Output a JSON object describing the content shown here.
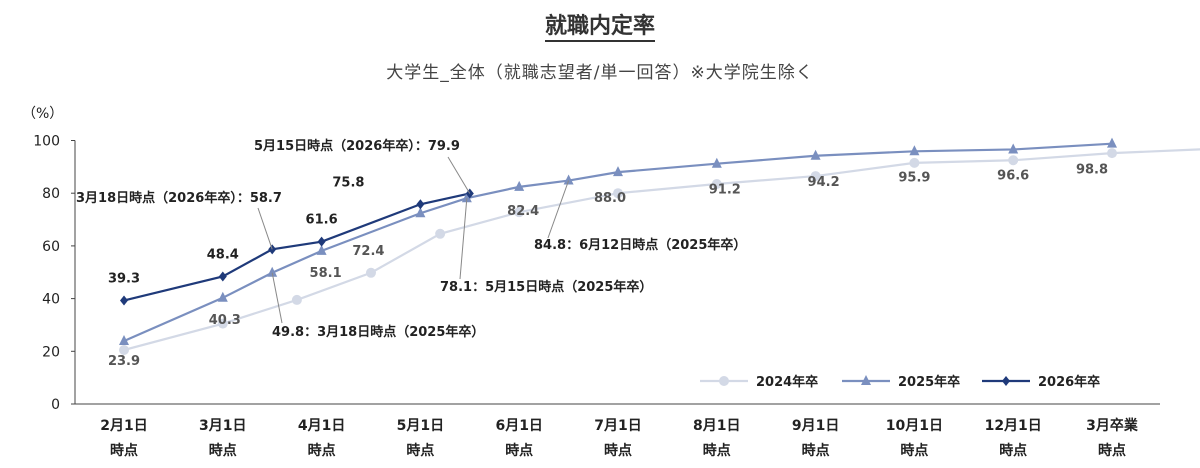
{
  "title": "就職内定率",
  "subtitle": "大学生_全体（就職志望者/単一回答）※大学院生除く",
  "chart_data": {
    "type": "line",
    "ylabel": "（%）",
    "ylim": [
      0,
      100
    ],
    "yticks": [
      0,
      20,
      40,
      60,
      80,
      100
    ],
    "categories": [
      [
        "2月1日",
        "時点"
      ],
      [
        "3月1日",
        "時点"
      ],
      [
        "4月1日",
        "時点"
      ],
      [
        "5月1日",
        "時点"
      ],
      [
        "6月1日",
        "時点"
      ],
      [
        "7月1日",
        "時点"
      ],
      [
        "8月1日",
        "時点"
      ],
      [
        "9月1日",
        "時点"
      ],
      [
        "10月1日",
        "時点"
      ],
      [
        "12月1日",
        "時点"
      ],
      [
        "3月卒業",
        "時点"
      ]
    ],
    "legend_position": "bottom-right",
    "series": [
      {
        "name": "2024年卒",
        "color": "#d3d9e6",
        "marker": "circle",
        "points": [
          [
            0,
            20.5
          ],
          [
            1,
            30.5
          ],
          [
            1.75,
            39.5
          ],
          [
            2.5,
            49.8
          ],
          [
            3.2,
            64.6
          ],
          [
            4,
            72.8
          ],
          [
            5,
            80
          ],
          [
            6,
            83.5
          ],
          [
            7,
            86.5
          ],
          [
            8,
            91.5
          ],
          [
            9,
            92.5
          ],
          [
            10,
            95.2
          ],
          [
            11,
            96.8
          ]
        ]
      },
      {
        "name": "2025年卒",
        "color": "#7a8fbf",
        "marker": "triangle",
        "points": [
          [
            0,
            23.9
          ],
          [
            1,
            40.3
          ],
          [
            1.5,
            49.8
          ],
          [
            2,
            58.1
          ],
          [
            3,
            72.4
          ],
          [
            3.47,
            78.1
          ],
          [
            4,
            82.4
          ],
          [
            4.5,
            84.8
          ],
          [
            5,
            88
          ],
          [
            6,
            91.2
          ],
          [
            7,
            94.2
          ],
          [
            8,
            95.9
          ],
          [
            9,
            96.6
          ],
          [
            10,
            98.8
          ]
        ]
      },
      {
        "name": "2026年卒",
        "color": "#1f3a7a",
        "marker": "diamond",
        "points": [
          [
            0,
            39.3
          ],
          [
            1,
            48.4
          ],
          [
            1.5,
            58.7
          ],
          [
            2,
            61.6
          ],
          [
            3,
            75.8
          ],
          [
            3.5,
            79.9
          ]
        ]
      }
    ],
    "value_labels": [
      {
        "text": "39.3",
        "series": 2,
        "point": 0
      },
      {
        "text": "48.4",
        "series": 2,
        "point": 1
      },
      {
        "text": "61.6",
        "series": 2,
        "point": 3
      },
      {
        "text": "75.8",
        "series": 2,
        "point": 4
      },
      {
        "text": "23.9",
        "series": 1,
        "point": 0
      },
      {
        "text": "40.3",
        "series": 1,
        "point": 1
      },
      {
        "text": "58.1",
        "series": 1,
        "point": 3
      },
      {
        "text": "72.4",
        "series": 1,
        "point": 4
      },
      {
        "text": "82.4",
        "series": 1,
        "point": 6
      },
      {
        "text": "88.0",
        "series": 1,
        "point": 8
      },
      {
        "text": "91.2",
        "series": 1,
        "point": 9
      },
      {
        "text": "94.2",
        "series": 1,
        "point": 10
      },
      {
        "text": "95.9",
        "series": 1,
        "point": 11
      },
      {
        "text": "96.6",
        "series": 1,
        "point": 12
      },
      {
        "text": "98.8",
        "series": 1,
        "point": 13
      }
    ],
    "annotations": [
      {
        "text": "5月15日時点（2026年卒）：79.9",
        "series": 2,
        "point": 5
      },
      {
        "text": "3月18日時点（2026年卒）：58.7",
        "series": 2,
        "point": 2
      },
      {
        "text": "84.8：6月12日時点（2025年卒）",
        "series": 1,
        "point": 7
      },
      {
        "text": "78.1：5月15日時点（2025年卒）",
        "series": 1,
        "point": 5
      },
      {
        "text": "49.8：3月18日時点（2025年卒）",
        "series": 1,
        "point": 2
      }
    ]
  }
}
